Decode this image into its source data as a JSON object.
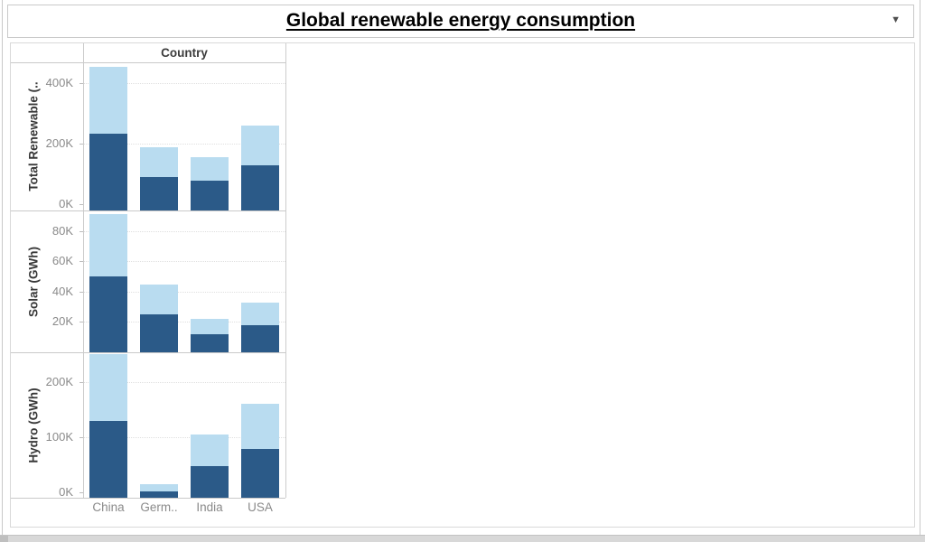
{
  "title": {
    "text": "Global renewable energy consumption"
  },
  "controls": {
    "dropdown_caret": "▼"
  },
  "chart_data": {
    "type": "bar",
    "stacked": true,
    "orientation": "vertical",
    "column_header": "Country",
    "categories": [
      "China",
      "Germ..",
      "India",
      "USA"
    ],
    "legend": "none visible",
    "colors": {
      "dark_segment": "#2b5a88",
      "light_segment": "#b9dcf0"
    },
    "panes": [
      {
        "axis_title": "Total Renewable (..",
        "unit_hint": "GWh",
        "ymin": -20000,
        "ymax": 470000,
        "ticks": [
          {
            "v": 0,
            "label": "0K",
            "grid": false
          },
          {
            "v": 200000,
            "label": "200K",
            "grid": true
          },
          {
            "v": 400000,
            "label": "400K",
            "grid": true
          }
        ],
        "series": [
          {
            "name": "dark-blue",
            "values": [
              235000,
              92000,
              78000,
              130000
            ]
          },
          {
            "name": "light-blue",
            "values": [
              220000,
              98000,
              77000,
              130000
            ]
          }
        ]
      },
      {
        "axis_title": "Solar (GWh)",
        "unit_hint": "GWh",
        "ymin": 0,
        "ymax": 93000,
        "ticks": [
          {
            "v": 20000,
            "label": "20K",
            "grid": true
          },
          {
            "v": 40000,
            "label": "40K",
            "grid": true
          },
          {
            "v": 60000,
            "label": "60K",
            "grid": true
          },
          {
            "v": 80000,
            "label": "80K",
            "grid": true
          }
        ],
        "series": [
          {
            "name": "dark-blue",
            "values": [
              50000,
              25000,
              12000,
              18000
            ]
          },
          {
            "name": "light-blue",
            "values": [
              41000,
              20000,
              10000,
              15000
            ]
          }
        ]
      },
      {
        "axis_title": "Hydro (GWh)",
        "unit_hint": "GWh",
        "ymin": -10000,
        "ymax": 252000,
        "ticks": [
          {
            "v": 0,
            "label": "0K",
            "grid": false
          },
          {
            "v": 100000,
            "label": "100K",
            "grid": true
          },
          {
            "v": 200000,
            "label": "200K",
            "grid": true
          }
        ],
        "series": [
          {
            "name": "dark-blue",
            "values": [
              130000,
              2000,
              48000,
              78000
            ]
          },
          {
            "name": "light-blue",
            "values": [
              120000,
              12000,
              57000,
              82000
            ]
          }
        ]
      }
    ]
  }
}
